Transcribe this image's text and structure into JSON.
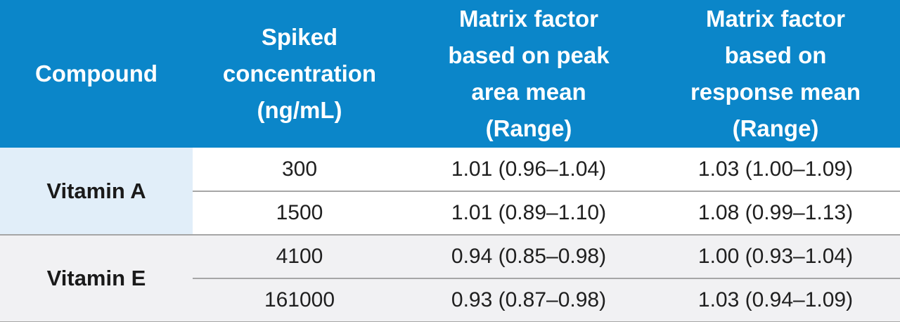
{
  "table": {
    "headers": [
      [
        "Compound"
      ],
      [
        "Spiked",
        "concentration",
        "(ng/mL)"
      ],
      [
        "Matrix factor",
        "based on peak",
        "area mean",
        "(Range)"
      ],
      [
        "Matrix factor",
        "based on",
        "response mean",
        "(Range)"
      ]
    ],
    "groups": [
      {
        "compound": "Vitamin A",
        "rows": [
          {
            "concentration": "300",
            "peak_area": "1.01 (0.96–1.04)",
            "response": "1.03 (1.00–1.09)"
          },
          {
            "concentration": "1500",
            "peak_area": "1.01 (0.89–1.10)",
            "response": "1.08 (0.99–1.13)"
          }
        ]
      },
      {
        "compound": "Vitamin E",
        "rows": [
          {
            "concentration": "4100",
            "peak_area": "0.94 (0.85–0.98)",
            "response": "1.00 (0.93–1.04)"
          },
          {
            "concentration": "161000",
            "peak_area": "0.93 (0.87–0.98)",
            "response": "1.03 (0.94–1.09)"
          }
        ]
      }
    ],
    "colors": {
      "header_bg": "#0b86c9",
      "header_text": "#ffffff",
      "compound_a_bg": "#e1eef9",
      "group_e_bg": "#f1f1f3",
      "row_divider": "#a6a6a6"
    }
  }
}
